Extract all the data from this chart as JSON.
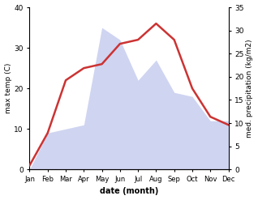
{
  "months": [
    "Jan",
    "Feb",
    "Mar",
    "Apr",
    "May",
    "Jun",
    "Jul",
    "Aug",
    "Sep",
    "Oct",
    "Nov",
    "Dec"
  ],
  "temperature": [
    1,
    9,
    22,
    25,
    26,
    31,
    32,
    36,
    32,
    20,
    13,
    11
  ],
  "precipitation": [
    0,
    9,
    10,
    11,
    35,
    32,
    22,
    27,
    19,
    18,
    12,
    12
  ],
  "temp_color": "#cc3333",
  "precip_fill_color": "#b0b8e8",
  "precip_fill_alpha": 0.6,
  "temp_ylim": [
    0,
    40
  ],
  "precip_ylim": [
    0,
    40
  ],
  "right_ylim": [
    0,
    35
  ],
  "temp_yticks": [
    0,
    10,
    20,
    30,
    40
  ],
  "right_yticks": [
    0,
    5,
    10,
    15,
    20,
    25,
    30,
    35
  ],
  "ylabel_left": "max temp (C)",
  "ylabel_right": "med. precipitation (kg/m2)",
  "xlabel": "date (month)",
  "temp_linewidth": 1.8
}
